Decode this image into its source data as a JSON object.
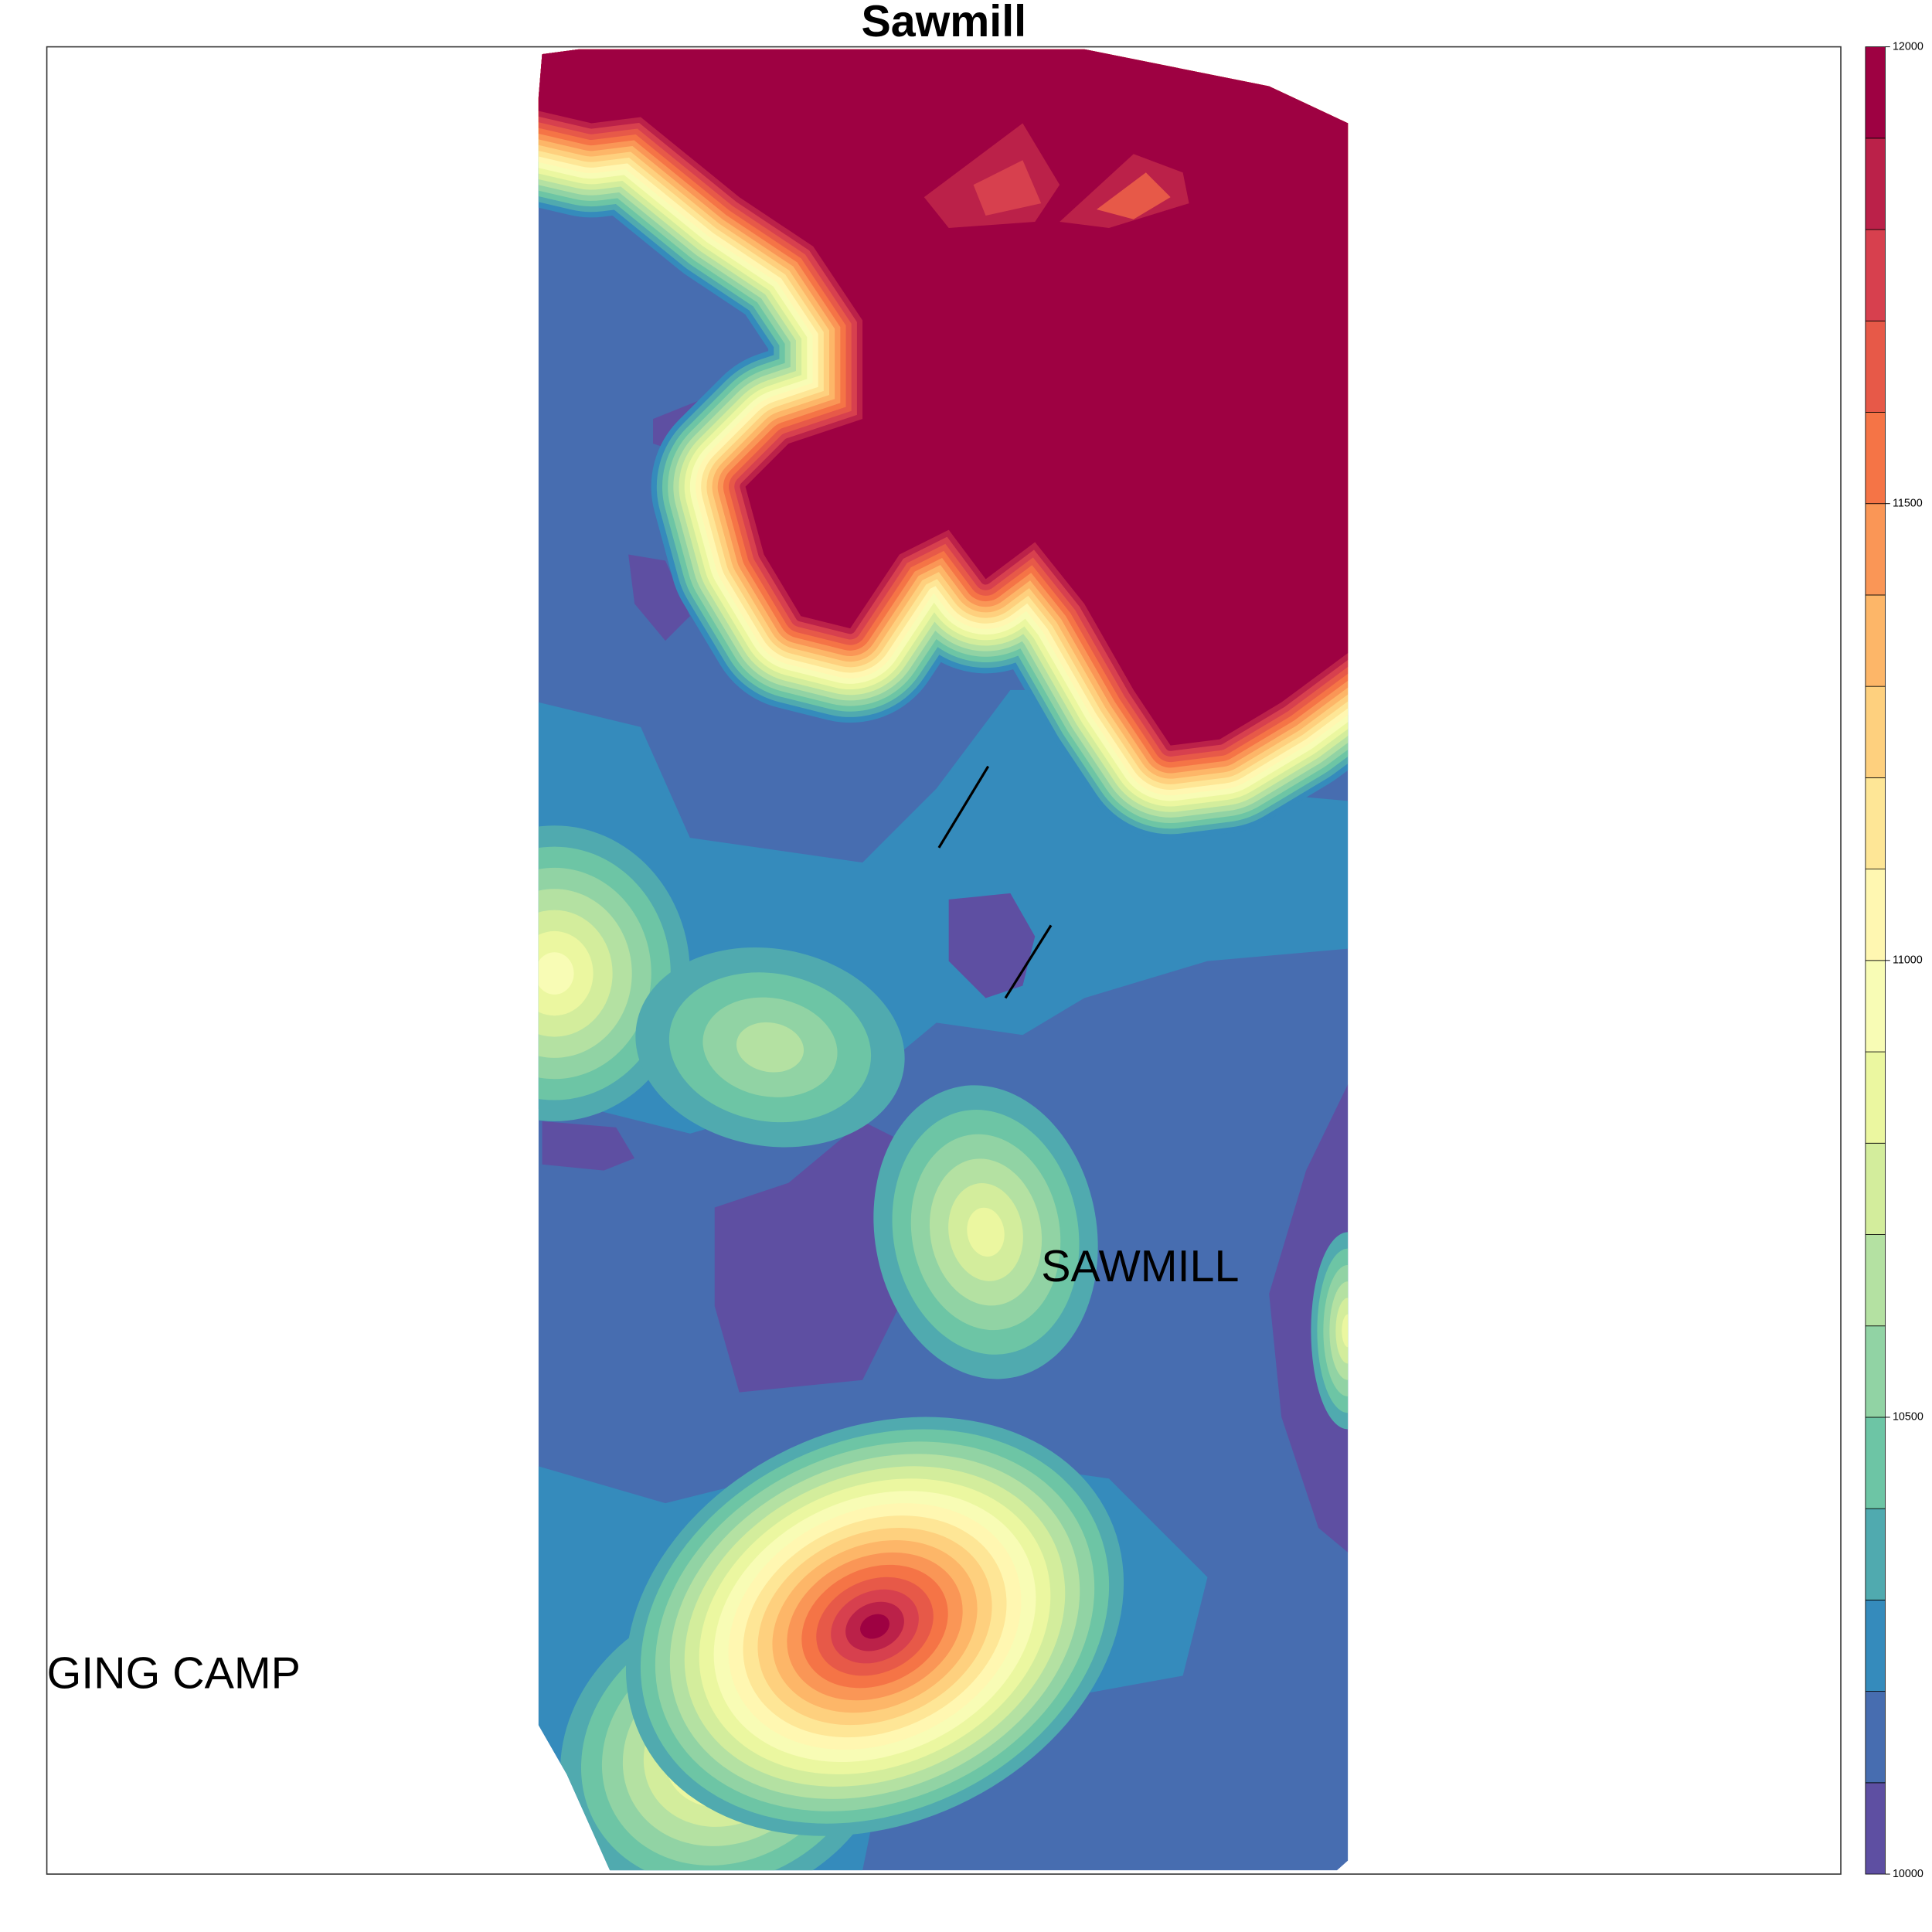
{
  "chart_data": {
    "type": "contour",
    "title": "Sawmill",
    "levels": [
      10000,
      10100,
      10200,
      10300,
      10400,
      10500,
      10600,
      10700,
      10800,
      10900,
      11000,
      11100,
      11200,
      11300,
      11400,
      11500,
      11600,
      11700,
      11800,
      11900,
      12000
    ],
    "colors": [
      "#5e4fa2",
      "#476db0",
      "#358bbc",
      "#50aaaf",
      "#6dc5a5",
      "#91d3a4",
      "#b4e1a2",
      "#d3ed9c",
      "#ebf7a0",
      "#f8fcb5",
      "#fff7b1",
      "#fee696",
      "#fed07e",
      "#fdb668",
      "#fa9656",
      "#f57446",
      "#e75948",
      "#d7404e",
      "#bb2149",
      "#9e0142"
    ],
    "zlim": [
      10000,
      12000
    ],
    "zticks": [
      10000,
      10500,
      11000,
      11500,
      12000
    ],
    "annotations": [
      "SAWMILL",
      "GING CAMP"
    ]
  }
}
